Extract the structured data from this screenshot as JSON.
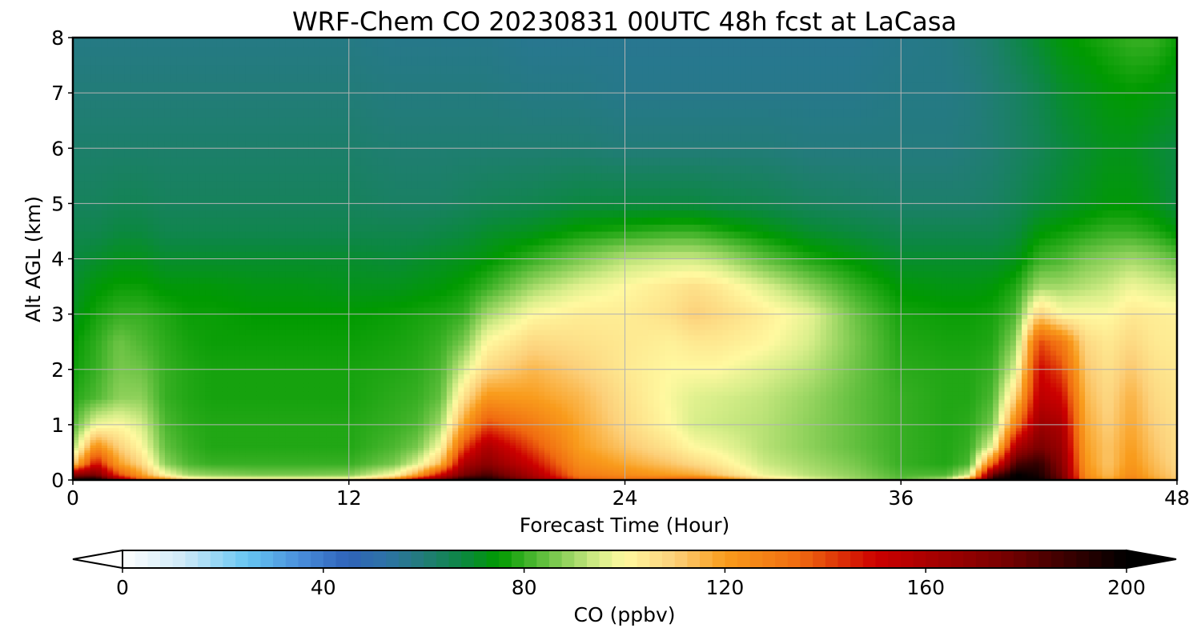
{
  "chart_data": {
    "type": "heatmap",
    "title": "WRF-Chem CO  20230831 00UTC 48h fcst at LaCasa",
    "xlabel": "Forecast Time (Hour)",
    "ylabel": "Alt AGL (km)",
    "xlim": [
      0,
      48
    ],
    "ylim": [
      0,
      8
    ],
    "x_ticks": [
      "0",
      "12",
      "24",
      "36",
      "48"
    ],
    "y_ticks": [
      "0",
      "1",
      "2",
      "3",
      "4",
      "5",
      "6",
      "7",
      "8"
    ],
    "grid": true,
    "colorbar": {
      "label": "CO  (ppbv)",
      "range": [
        0,
        200
      ],
      "ticks": [
        "0",
        "40",
        "80",
        "120",
        "160",
        "200"
      ],
      "extend": "both",
      "colorscale": [
        [
          0,
          "#ffffff"
        ],
        [
          12,
          "#cfeaf8"
        ],
        [
          25,
          "#66c6f2"
        ],
        [
          35,
          "#4a90dc"
        ],
        [
          45,
          "#2f62b8"
        ],
        [
          52,
          "#2e72a8"
        ],
        [
          60,
          "#227c78"
        ],
        [
          68,
          "#0b8840"
        ],
        [
          75,
          "#009a00"
        ],
        [
          85,
          "#6ec446"
        ],
        [
          95,
          "#d8ee8a"
        ],
        [
          100,
          "#fff9a0"
        ],
        [
          110,
          "#fcd07a"
        ],
        [
          120,
          "#f99c1c"
        ],
        [
          135,
          "#f06a10"
        ],
        [
          150,
          "#cc0000"
        ],
        [
          175,
          "#7a0000"
        ],
        [
          200,
          "#000000"
        ]
      ]
    },
    "x_hours": [
      0,
      1,
      2,
      3,
      4,
      5,
      6,
      8,
      10,
      12,
      14,
      15,
      16,
      17,
      18,
      20,
      22,
      24,
      26,
      27,
      28,
      30,
      32,
      34,
      36,
      38,
      39,
      40,
      41,
      42,
      43,
      44,
      45,
      46,
      47,
      48
    ],
    "y_km": [
      0,
      0.1,
      0.3,
      0.6,
      1.0,
      1.5,
      2.0,
      2.5,
      3.0,
      3.5,
      4.0,
      4.5,
      5.0,
      6.0,
      7.0,
      8.0
    ],
    "values_ppbv": [
      [
        200,
        170,
        110,
        90,
        82,
        78,
        76,
        75,
        72,
        70,
        68,
        66,
        64,
        62,
        60,
        58
      ],
      [
        205,
        175,
        150,
        125,
        98,
        82,
        80,
        79,
        77,
        74,
        70,
        66,
        64,
        62,
        60,
        58
      ],
      [
        170,
        140,
        120,
        110,
        100,
        88,
        86,
        85,
        80,
        76,
        72,
        68,
        65,
        62,
        60,
        58
      ],
      [
        140,
        120,
        108,
        100,
        95,
        88,
        85,
        82,
        80,
        76,
        72,
        68,
        65,
        62,
        60,
        58
      ],
      [
        130,
        100,
        88,
        84,
        82,
        80,
        80,
        79,
        78,
        74,
        70,
        66,
        64,
        62,
        60,
        58
      ],
      [
        110,
        90,
        82,
        80,
        79,
        78,
        78,
        77,
        76,
        74,
        70,
        66,
        64,
        62,
        60,
        58
      ],
      [
        105,
        88,
        80,
        78,
        78,
        77,
        77,
        76,
        76,
        74,
        70,
        66,
        64,
        62,
        60,
        58
      ],
      [
        105,
        86,
        80,
        78,
        78,
        77,
        77,
        76,
        75,
        73,
        70,
        66,
        64,
        62,
        60,
        58
      ],
      [
        105,
        86,
        80,
        78,
        78,
        77,
        77,
        76,
        75,
        73,
        70,
        66,
        64,
        62,
        60,
        58
      ],
      [
        106,
        87,
        80,
        78,
        78,
        77,
        77,
        76,
        75,
        72,
        70,
        66,
        64,
        62,
        60,
        58
      ],
      [
        130,
        100,
        86,
        82,
        80,
        79,
        78,
        77,
        76,
        72,
        69,
        66,
        63,
        61,
        59,
        57
      ],
      [
        165,
        120,
        96,
        86,
        82,
        80,
        79,
        78,
        77,
        73,
        70,
        66,
        63,
        61,
        59,
        57
      ],
      [
        180,
        150,
        115,
        100,
        90,
        84,
        82,
        80,
        78,
        74,
        71,
        67,
        63,
        61,
        59,
        57
      ],
      [
        200,
        175,
        160,
        140,
        120,
        106,
        95,
        86,
        80,
        76,
        72,
        68,
        64,
        61,
        59,
        57
      ],
      [
        200,
        185,
        170,
        160,
        140,
        122,
        108,
        100,
        90,
        80,
        74,
        70,
        65,
        61,
        59,
        57
      ],
      [
        170,
        160,
        150,
        140,
        130,
        120,
        115,
        108,
        100,
        90,
        80,
        72,
        66,
        61,
        58,
        56
      ],
      [
        140,
        130,
        125,
        120,
        118,
        115,
        110,
        106,
        103,
        96,
        86,
        76,
        68,
        61,
        58,
        56
      ],
      [
        135,
        125,
        118,
        112,
        108,
        106,
        104,
        104,
        103,
        100,
        92,
        78,
        68,
        60,
        57,
        56
      ],
      [
        140,
        120,
        112,
        105,
        100,
        99,
        100,
        102,
        106,
        104,
        94,
        80,
        68,
        60,
        57,
        56
      ],
      [
        143,
        118,
        108,
        100,
        95,
        96,
        100,
        104,
        110,
        106,
        94,
        80,
        68,
        60,
        57,
        56
      ],
      [
        135,
        112,
        104,
        98,
        94,
        95,
        100,
        104,
        108,
        104,
        92,
        78,
        67,
        60,
        57,
        56
      ],
      [
        112,
        98,
        94,
        92,
        92,
        93,
        96,
        101,
        103,
        96,
        84,
        74,
        66,
        60,
        57,
        56
      ],
      [
        98,
        92,
        90,
        88,
        88,
        89,
        92,
        95,
        97,
        88,
        78,
        70,
        64,
        59,
        57,
        56
      ],
      [
        90,
        88,
        86,
        84,
        84,
        84,
        85,
        86,
        85,
        80,
        74,
        68,
        63,
        59,
        57,
        56
      ],
      [
        84,
        82,
        80,
        80,
        80,
        80,
        79,
        78,
        77,
        74,
        70,
        66,
        62,
        59,
        58,
        57
      ],
      [
        95,
        82,
        78,
        78,
        78,
        78,
        78,
        77,
        76,
        73,
        70,
        66,
        62,
        59,
        58,
        58
      ],
      [
        130,
        95,
        82,
        80,
        79,
        78,
        78,
        77,
        76,
        73,
        70,
        66,
        62,
        60,
        59,
        60
      ],
      [
        200,
        180,
        135,
        98,
        86,
        82,
        80,
        78,
        77,
        74,
        70,
        66,
        63,
        61,
        61,
        62
      ],
      [
        200,
        200,
        185,
        160,
        130,
        110,
        96,
        88,
        82,
        78,
        72,
        68,
        65,
        63,
        63,
        66
      ],
      [
        200,
        195,
        190,
        175,
        165,
        155,
        150,
        140,
        110,
        90,
        80,
        74,
        68,
        65,
        66,
        70
      ],
      [
        180,
        175,
        170,
        165,
        160,
        150,
        140,
        130,
        100,
        90,
        82,
        76,
        70,
        68,
        70,
        74
      ],
      [
        130,
        125,
        122,
        120,
        118,
        115,
        112,
        108,
        100,
        92,
        86,
        78,
        72,
        70,
        72,
        76
      ],
      [
        118,
        114,
        112,
        112,
        110,
        108,
        106,
        104,
        100,
        94,
        88,
        80,
        74,
        72,
        74,
        78
      ],
      [
        130,
        125,
        122,
        120,
        118,
        116,
        112,
        108,
        104,
        98,
        90,
        80,
        74,
        72,
        75,
        80
      ],
      [
        120,
        116,
        114,
        112,
        110,
        108,
        106,
        104,
        103,
        96,
        88,
        78,
        72,
        70,
        74,
        80
      ],
      [
        112,
        110,
        108,
        107,
        106,
        105,
        104,
        103,
        102,
        94,
        84,
        74,
        68,
        68,
        72,
        76
      ]
    ]
  }
}
